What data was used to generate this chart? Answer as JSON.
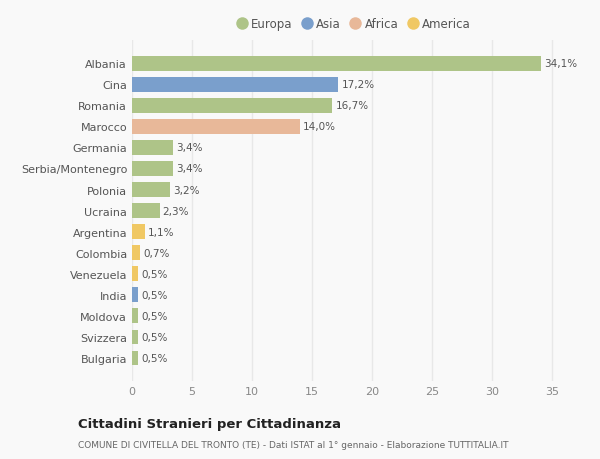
{
  "categories": [
    "Albania",
    "Cina",
    "Romania",
    "Marocco",
    "Germania",
    "Serbia/Montenegro",
    "Polonia",
    "Ucraina",
    "Argentina",
    "Colombia",
    "Venezuela",
    "India",
    "Moldova",
    "Svizzera",
    "Bulgaria"
  ],
  "values": [
    34.1,
    17.2,
    16.7,
    14.0,
    3.4,
    3.4,
    3.2,
    2.3,
    1.1,
    0.7,
    0.5,
    0.5,
    0.5,
    0.5,
    0.5
  ],
  "labels": [
    "34,1%",
    "17,2%",
    "16,7%",
    "14,0%",
    "3,4%",
    "3,4%",
    "3,2%",
    "2,3%",
    "1,1%",
    "0,7%",
    "0,5%",
    "0,5%",
    "0,5%",
    "0,5%",
    "0,5%"
  ],
  "colors": [
    "#aec488",
    "#7a9fcc",
    "#aec488",
    "#e8b899",
    "#aec488",
    "#aec488",
    "#aec488",
    "#aec488",
    "#f0c864",
    "#f0c864",
    "#f0c864",
    "#7a9fcc",
    "#aec488",
    "#aec488",
    "#aec488"
  ],
  "legend_labels": [
    "Europa",
    "Asia",
    "Africa",
    "America"
  ],
  "legend_colors": [
    "#aec488",
    "#7a9fcc",
    "#e8b899",
    "#f0c864"
  ],
  "title": "Cittadini Stranieri per Cittadinanza",
  "subtitle": "COMUNE DI CIVITELLA DEL TRONTO (TE) - Dati ISTAT al 1° gennaio - Elaborazione TUTTITALIA.IT",
  "xlim": [
    0,
    37
  ],
  "xticks": [
    0,
    5,
    10,
    15,
    20,
    25,
    30,
    35
  ],
  "background_color": "#f9f9f9",
  "grid_color": "#e8e8e8",
  "bar_height": 0.7
}
